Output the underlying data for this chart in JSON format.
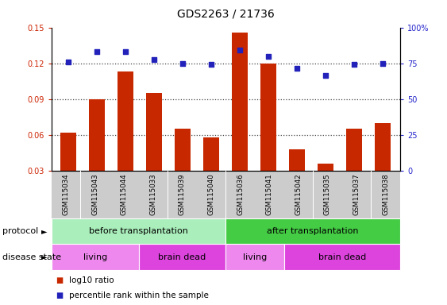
{
  "title": "GDS2263 / 21736",
  "samples": [
    "GSM115034",
    "GSM115043",
    "GSM115044",
    "GSM115033",
    "GSM115039",
    "GSM115040",
    "GSM115036",
    "GSM115041",
    "GSM115042",
    "GSM115035",
    "GSM115037",
    "GSM115038"
  ],
  "log10_ratio": [
    0.062,
    0.09,
    0.113,
    0.095,
    0.065,
    0.058,
    0.146,
    0.12,
    0.048,
    0.036,
    0.065,
    0.07
  ],
  "percentile_rank_left": [
    0.121,
    0.13,
    0.13,
    0.123,
    0.12,
    0.119,
    0.131,
    0.126,
    0.116,
    0.11,
    0.119,
    0.12
  ],
  "ylim_left": [
    0.03,
    0.15
  ],
  "ylim_right": [
    0,
    100
  ],
  "yticks_left": [
    0.03,
    0.06,
    0.09,
    0.12,
    0.15
  ],
  "yticks_right": [
    0,
    25,
    50,
    75,
    100
  ],
  "ytick_labels_right": [
    "0",
    "25",
    "50",
    "75",
    "100%"
  ],
  "bar_color": "#c82800",
  "dot_color": "#2222bb",
  "bar_width": 0.55,
  "protocol_groups": [
    {
      "label": "before transplantation",
      "start": 0,
      "end": 6,
      "color": "#aaeebb"
    },
    {
      "label": "after transplantation",
      "start": 6,
      "end": 12,
      "color": "#44cc44"
    }
  ],
  "disease_groups": [
    {
      "label": "living",
      "start": 0,
      "end": 3,
      "color": "#ee88ee"
    },
    {
      "label": "brain dead",
      "start": 3,
      "end": 6,
      "color": "#dd44dd"
    },
    {
      "label": "living",
      "start": 6,
      "end": 8,
      "color": "#ee88ee"
    },
    {
      "label": "brain dead",
      "start": 8,
      "end": 12,
      "color": "#dd44dd"
    }
  ],
  "legend_bar_label": "log10 ratio",
  "legend_dot_label": "percentile rank within the sample",
  "dotted_line_color": "#444444",
  "axis_color_left": "#cc2200",
  "axis_color_right": "#2222cc",
  "background_color": "#ffffff",
  "plot_bg_color": "#ffffff",
  "xticklabel_bg": "#cccccc",
  "title_fontsize": 10,
  "tick_fontsize": 7,
  "label_fontsize": 8,
  "row_label_fontsize": 8,
  "row_text_fontsize": 8
}
